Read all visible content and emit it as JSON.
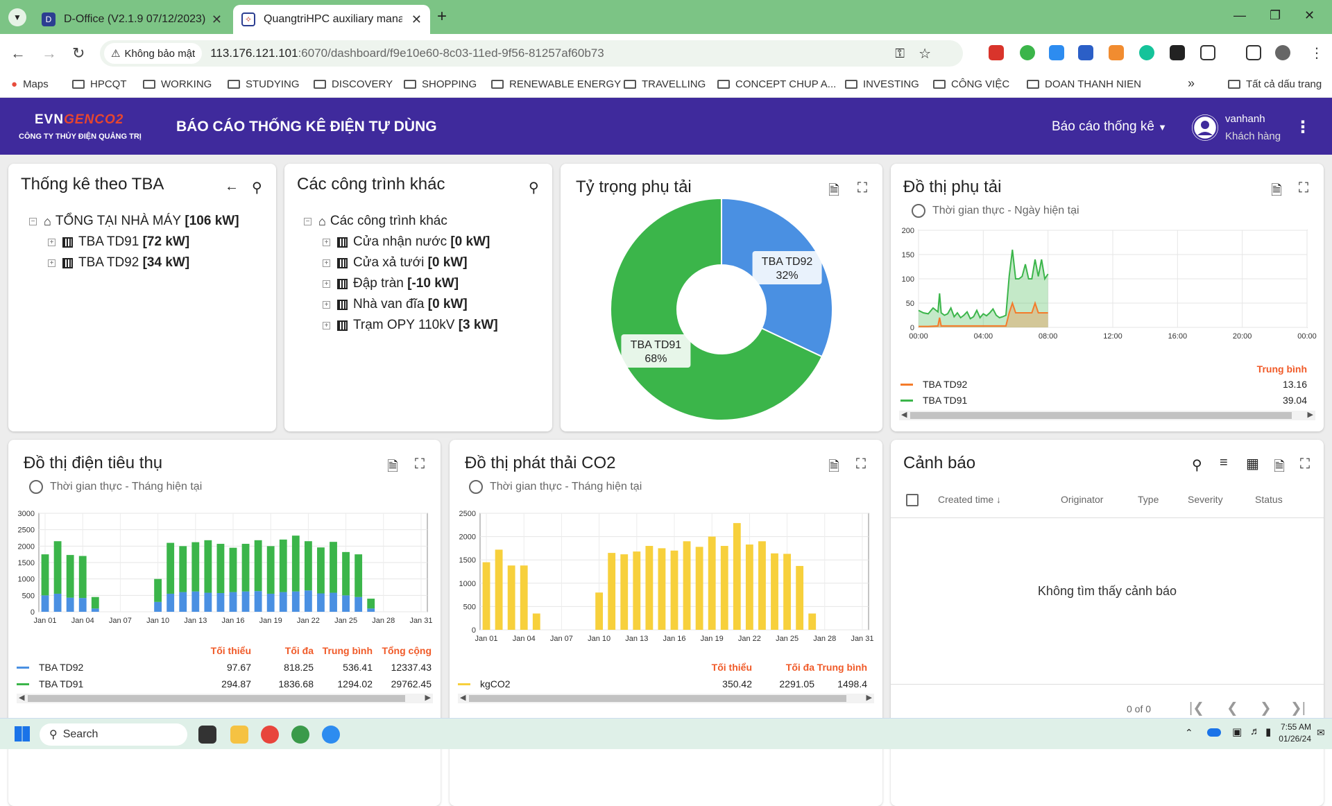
{
  "browser": {
    "tabs": [
      {
        "title": "D-Office (V2.1.9 07/12/2023)",
        "active": false
      },
      {
        "title": "QuangtriHPC auxiliary manager",
        "active": true
      }
    ],
    "security_label": "Không bảo mật",
    "url_host": "113.176.121.101",
    "url_rest": ":6070/dashboard/f9e10e60-8c03-11ed-9f56-81257af60b73",
    "bookmarks": [
      "Maps",
      "HPCQT",
      "WORKING",
      "STUDYING",
      "DISCOVERY",
      "SHOPPING",
      "RENEWABLE ENERGY",
      "TRAVELLING",
      "CONCEPT CHUP A...",
      "INVESTING",
      "CÔNG VIỆC",
      "DOAN THANH NIEN"
    ],
    "bookmarks_more": "»",
    "all_bookmarks": "Tất cả dấu trang"
  },
  "header": {
    "brand_evn": "EVN",
    "brand_genco": "GENCO2",
    "brand_company": "CÔNG TY THỦY ĐIỆN QUẢNG TRỊ",
    "title": "BÁO CÁO THỐNG KÊ ĐIỆN TỰ DÙNG",
    "menu": "Báo cáo thống kê",
    "user_name": "vanhanh",
    "user_role": "Khách hàng"
  },
  "tba_card": {
    "title": "Thống kê theo TBA",
    "root": {
      "label": "TỔNG TẠI NHÀ MÁY",
      "value": "[106 kW]"
    },
    "items": [
      {
        "label": "TBA TD91",
        "value": "[72 kW]"
      },
      {
        "label": "TBA TD92",
        "value": "[34 kW]"
      }
    ]
  },
  "other_card": {
    "title": "Các công trình khác",
    "root": {
      "label": "Các công trình khác"
    },
    "items": [
      {
        "label": "Cửa nhận nước",
        "value": "[0 kW]"
      },
      {
        "label": "Cửa xả tưới",
        "value": "[0 kW]"
      },
      {
        "label": "Đập tràn",
        "value": "[-10 kW]"
      },
      {
        "label": "Nhà van đĩa",
        "value": "[0 kW]"
      },
      {
        "label": "Trạm OPY 110kV",
        "value": "[3 kW]"
      }
    ]
  },
  "pie_card": {
    "title": "Tỷ trọng phụ tải",
    "chart_data": {
      "type": "pie",
      "donut": true,
      "slices": [
        {
          "label": "TBA TD92",
          "value": 32,
          "pct": "32%",
          "color": "#4a90e2"
        },
        {
          "label": "TBA TD91",
          "value": 68,
          "pct": "68%",
          "color": "#3bb54a"
        }
      ]
    }
  },
  "load_card": {
    "title": "Đồ thị phụ tải",
    "subtitle": "Thời gian thực - Ngày hiện tại",
    "avg_header": "Trung bình",
    "legend": [
      {
        "name": "TBA TD92",
        "color": "#f47b2a",
        "avg": "13.16"
      },
      {
        "name": "TBA TD91",
        "color": "#3bb54a",
        "avg": "39.04"
      }
    ],
    "chart_data": {
      "type": "area",
      "x_ticks": [
        "00:00",
        "04:00",
        "08:00",
        "12:00",
        "16:00",
        "20:00",
        "00:00"
      ],
      "y_ticks": [
        "0",
        "50",
        "100",
        "150",
        "200"
      ],
      "ylim": [
        0,
        200
      ],
      "xlim_hours": [
        0,
        24
      ],
      "series": [
        {
          "name": "TBA TD91",
          "color": "#3bb54a",
          "x": [
            0,
            0.3,
            0.6,
            0.9,
            1.2,
            1.3,
            1.4,
            1.6,
            1.8,
            2.0,
            2.2,
            2.4,
            2.6,
            2.8,
            3.0,
            3.2,
            3.4,
            3.6,
            3.8,
            4.0,
            4.2,
            4.4,
            4.6,
            4.8,
            5.0,
            5.2,
            5.4,
            5.6,
            5.8,
            6.0,
            6.2,
            6.4,
            6.6,
            6.8,
            7.0,
            7.2,
            7.4,
            7.6,
            7.8,
            8.0
          ],
          "y": [
            35,
            30,
            28,
            40,
            32,
            70,
            30,
            25,
            28,
            40,
            22,
            30,
            20,
            25,
            32,
            18,
            22,
            35,
            20,
            28,
            24,
            30,
            38,
            25,
            20,
            22,
            25,
            105,
            160,
            100,
            100,
            105,
            130,
            100,
            100,
            140,
            105,
            140,
            100,
            110
          ]
        },
        {
          "name": "TBA TD92",
          "color": "#f47b2a",
          "x": [
            0,
            0.6,
            1.2,
            1.3,
            1.4,
            2.0,
            3.0,
            4.0,
            5.0,
            5.4,
            5.6,
            5.8,
            6.0,
            7.0,
            7.2,
            7.4,
            8.0
          ],
          "y": [
            2,
            2,
            3,
            20,
            3,
            3,
            3,
            3,
            3,
            3,
            30,
            50,
            30,
            30,
            50,
            30,
            30
          ]
        }
      ]
    }
  },
  "energy_card": {
    "title": "Đồ thị điện tiêu thụ",
    "subtitle": "Thời gian thực - Tháng hiện tại",
    "stat_headers": [
      "Tối thiểu",
      "Tối đa",
      "Trung bình",
      "Tổng cộng"
    ],
    "legend": [
      {
        "name": "TBA TD92",
        "color": "#4a90e2",
        "stats": [
          "97.67",
          "818.25",
          "536.41",
          "12337.43"
        ]
      },
      {
        "name": "TBA TD91",
        "color": "#3bb54a",
        "stats": [
          "294.87",
          "1836.68",
          "1294.02",
          "29762.45"
        ]
      }
    ],
    "chart_data": {
      "type": "bar",
      "stacked": true,
      "x_ticks": [
        "Jan 01",
        "Jan 04",
        "Jan 07",
        "Jan 10",
        "Jan 13",
        "Jan 16",
        "Jan 19",
        "Jan 22",
        "Jan 25",
        "Jan 28",
        "Jan 31"
      ],
      "y_ticks": [
        "0",
        "500",
        "1000",
        "1500",
        "2000",
        "2500",
        "3000"
      ],
      "ylim": [
        0,
        3000
      ],
      "days": 31,
      "series": [
        {
          "name": "TBA TD92",
          "color": "#4a90e2",
          "values": [
            500,
            550,
            430,
            420,
            100,
            0,
            0,
            0,
            0,
            300,
            550,
            600,
            620,
            580,
            570,
            600,
            620,
            630,
            550,
            600,
            620,
            650,
            560,
            580,
            500,
            450,
            100,
            0,
            0,
            0,
            0
          ]
        },
        {
          "name": "TBA TD91",
          "color": "#3bb54a",
          "values": [
            1250,
            1600,
            1300,
            1280,
            350,
            0,
            0,
            0,
            0,
            700,
            1550,
            1400,
            1500,
            1600,
            1500,
            1350,
            1450,
            1550,
            1450,
            1600,
            1700,
            1500,
            1400,
            1550,
            1320,
            1300,
            300,
            0,
            0,
            0,
            0
          ]
        }
      ]
    }
  },
  "co2_card": {
    "title": "Đồ thị phát thải CO2",
    "subtitle": "Thời gian thực - Tháng hiện tại",
    "stat_headers": [
      "Tối thiểu",
      "Tối đa",
      "Trung bình"
    ],
    "legend": [
      {
        "name": "kgCO2",
        "color": "#f7d03c",
        "stats": [
          "350.42",
          "2291.05",
          "1498.4"
        ]
      }
    ],
    "chart_data": {
      "type": "bar",
      "x_ticks": [
        "Jan 01",
        "Jan 04",
        "Jan 07",
        "Jan 10",
        "Jan 13",
        "Jan 16",
        "Jan 19",
        "Jan 22",
        "Jan 25",
        "Jan 28",
        "Jan 31"
      ],
      "y_ticks": [
        "0",
        "500",
        "1000",
        "1500",
        "2000",
        "2500"
      ],
      "ylim": [
        0,
        2500
      ],
      "days": 31,
      "values": [
        1450,
        1720,
        1380,
        1380,
        350,
        0,
        0,
        0,
        0,
        800,
        1650,
        1620,
        1680,
        1800,
        1750,
        1700,
        1900,
        1780,
        2000,
        1800,
        2290,
        1830,
        1900,
        1640,
        1630,
        1370,
        350,
        0,
        0,
        0,
        0
      ],
      "color": "#f7d03c"
    }
  },
  "alarm_card": {
    "title": "Cảnh báo",
    "columns": [
      "Created time",
      "Originator",
      "Type",
      "Severity",
      "Status"
    ],
    "empty_text": "Không tìm thấy cảnh báo",
    "pagination": "0 of 0"
  },
  "taskbar": {
    "search_placeholder": "Search",
    "time": "7:55 AM",
    "date": "01/26/24"
  }
}
